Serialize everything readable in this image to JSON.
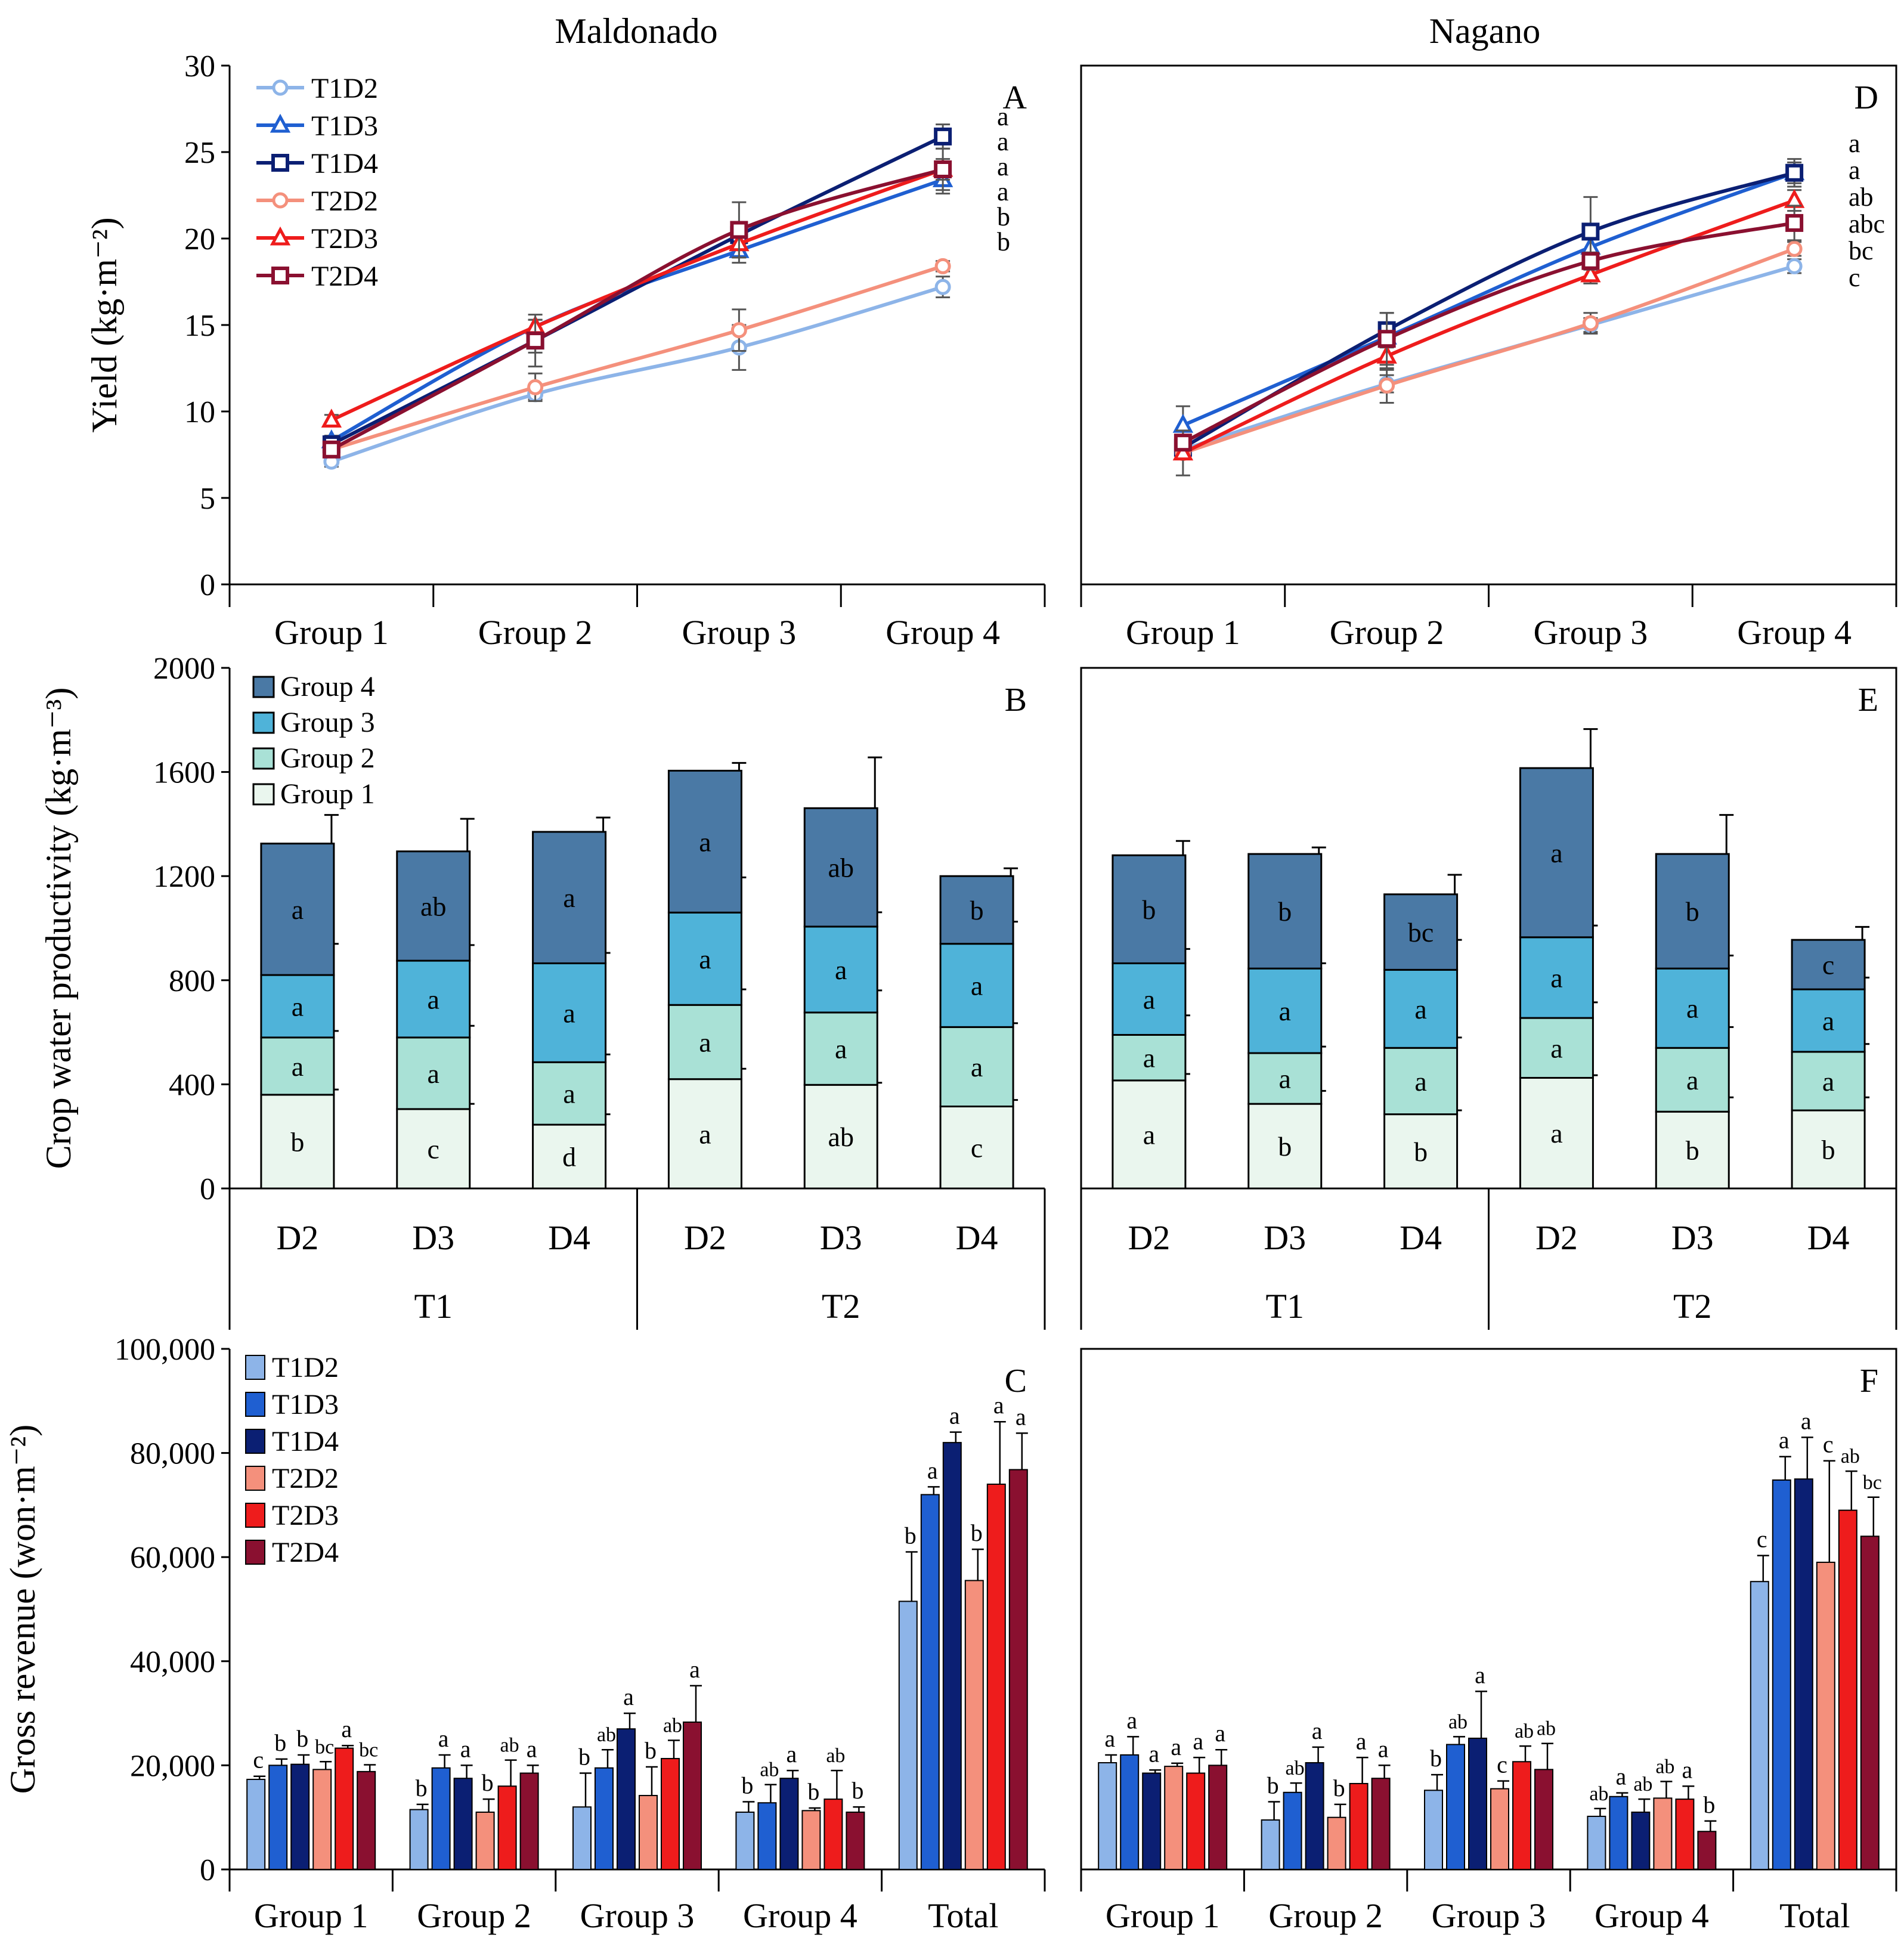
{
  "titles": {
    "left": "Maldonado",
    "right": "Nagano"
  },
  "colors": {
    "T1D2": "#8DB4E8",
    "T1D3": "#1F5FD1",
    "T1D4": "#0B1F73",
    "T2D2": "#F4907C",
    "T2D3": "#EE1C1C",
    "T2D4": "#8A1030",
    "Group 1": "#EAF6EE",
    "Group 2": "#A9E1D6",
    "Group 3": "#4FB3D9",
    "Group 4": "#4A79A5"
  },
  "chart_data": [
    {
      "id": "A",
      "panel": "A",
      "type": "line",
      "location": "Maldonado",
      "ylabel": "Yield (kg·m⁻²)",
      "ylim": [
        0,
        30
      ],
      "yticks": [
        "0",
        "5",
        "10",
        "15",
        "20",
        "25",
        "30"
      ],
      "categories": [
        "Group 1",
        "Group 2",
        "Group 3",
        "Group 4"
      ],
      "series": [
        {
          "name": "T1D2",
          "marker": "circle",
          "values": [
            7.1,
            11.0,
            13.7,
            17.2
          ],
          "errors": [
            0.3,
            0.3,
            1.3,
            0.6
          ]
        },
        {
          "name": "T1D3",
          "marker": "triangle",
          "values": [
            8.3,
            14.9,
            19.3,
            23.4
          ],
          "errors": [
            0.3,
            0.4,
            0.7,
            0.8
          ]
        },
        {
          "name": "T1D4",
          "marker": "square",
          "values": [
            8.1,
            14.1,
            20.2,
            25.9
          ],
          "errors": [
            0.4,
            0.7,
            0.5,
            0.7
          ]
        },
        {
          "name": "T2D2",
          "marker": "circle",
          "values": [
            7.8,
            11.4,
            14.7,
            18.4
          ],
          "errors": [
            0.3,
            0.8,
            1.2,
            0.3
          ]
        },
        {
          "name": "T2D3",
          "marker": "triangle",
          "values": [
            9.5,
            14.9,
            19.7,
            24.0
          ],
          "errors": [
            0.3,
            0.4,
            0.8,
            0.6
          ]
        },
        {
          "name": "T2D4",
          "marker": "square",
          "values": [
            7.8,
            14.1,
            20.5,
            24.0
          ],
          "errors": [
            0.4,
            1.5,
            1.6,
            1.2
          ]
        }
      ],
      "end_labels": [
        "a",
        "a",
        "a",
        "a",
        "b",
        "b"
      ]
    },
    {
      "id": "D",
      "panel": "D",
      "type": "line",
      "location": "Nagano",
      "ylabel": "",
      "ylim": [
        0,
        30
      ],
      "categories": [
        "Group 1",
        "Group 2",
        "Group 3",
        "Group 4"
      ],
      "series": [
        {
          "name": "T1D2",
          "marker": "circle",
          "values": [
            7.8,
            11.6,
            15.0,
            18.4
          ],
          "errors": [
            0.3,
            0.5,
            0.4,
            0.4
          ]
        },
        {
          "name": "T1D3",
          "marker": "triangle",
          "values": [
            9.2,
            14.3,
            19.5,
            23.8
          ],
          "errors": [
            1.1,
            0.5,
            0.5,
            0.6
          ]
        },
        {
          "name": "T1D4",
          "marker": "square",
          "values": [
            7.9,
            14.7,
            20.4,
            23.8
          ],
          "errors": [
            0.4,
            1.0,
            2.0,
            0.8
          ]
        },
        {
          "name": "T2D2",
          "marker": "circle",
          "values": [
            7.6,
            11.5,
            15.1,
            19.4
          ],
          "errors": [
            0.3,
            1.0,
            0.6,
            0.4
          ]
        },
        {
          "name": "T2D3",
          "marker": "triangle",
          "values": [
            7.6,
            13.2,
            17.9,
            22.2
          ],
          "errors": [
            1.3,
            0.8,
            0.5,
            0.6
          ]
        },
        {
          "name": "T2D4",
          "marker": "square",
          "values": [
            8.2,
            14.2,
            18.7,
            20.9
          ],
          "errors": [
            0.4,
            1.5,
            0.5,
            1.0
          ]
        }
      ],
      "end_labels": [
        "a",
        "a",
        "ab",
        "abc",
        "bc",
        "c"
      ]
    },
    {
      "id": "B",
      "panel": "B",
      "type": "bar",
      "stacked": true,
      "location": "Maldonado",
      "ylabel": "Crop water productivity (kg·m⁻³)",
      "ylim": [
        0,
        2000
      ],
      "yticks": [
        "0",
        "400",
        "800",
        "1200",
        "1600",
        "2000"
      ],
      "categories": [
        "D2",
        "D3",
        "D4",
        "D2",
        "D3",
        "D4"
      ],
      "groups": [
        {
          "label": "T1",
          "span": [
            0,
            2
          ]
        },
        {
          "label": "T2",
          "span": [
            3,
            5
          ]
        }
      ],
      "series": [
        {
          "name": "Group 1",
          "values": [
            360,
            305,
            245,
            420,
            398,
            315
          ],
          "errors": [
            20,
            20,
            40,
            40,
            8,
            25
          ],
          "labels": [
            "b",
            "c",
            "d",
            "a",
            "ab",
            "c"
          ]
        },
        {
          "name": "Group 2",
          "values": [
            220,
            275,
            240,
            285,
            278,
            305
          ],
          "errors": [
            25,
            45,
            30,
            60,
            85,
            15
          ],
          "labels": [
            "a",
            "a",
            "a",
            "a",
            "a",
            "a"
          ]
        },
        {
          "name": "Group 3",
          "values": [
            240,
            295,
            380,
            355,
            330,
            320
          ],
          "errors": [
            120,
            60,
            40,
            135,
            55,
            85
          ],
          "labels": [
            "a",
            "a",
            "a",
            "a",
            "a",
            "a"
          ]
        },
        {
          "name": "Group 4",
          "values": [
            505,
            420,
            505,
            545,
            455,
            260
          ],
          "errors": [
            110,
            125,
            55,
            30,
            195,
            30
          ],
          "labels": [
            "a",
            "ab",
            "a",
            "a",
            "ab",
            "b"
          ]
        }
      ]
    },
    {
      "id": "E",
      "panel": "E",
      "type": "bar",
      "stacked": true,
      "location": "Nagano",
      "ylabel": "",
      "ylim": [
        0,
        2000
      ],
      "categories": [
        "D2",
        "D3",
        "D4",
        "D2",
        "D3",
        "D4"
      ],
      "groups": [
        {
          "label": "T1",
          "span": [
            0,
            2
          ]
        },
        {
          "label": "T2",
          "span": [
            3,
            5
          ]
        }
      ],
      "series": [
        {
          "name": "Group 1",
          "values": [
            415,
            325,
            285,
            425,
            295,
            300
          ],
          "errors": [
            25,
            50,
            15,
            10,
            55,
            50
          ],
          "labels": [
            "a",
            "b",
            "b",
            "a",
            "b",
            "b"
          ]
        },
        {
          "name": "Group 2",
          "values": [
            175,
            195,
            255,
            230,
            245,
            225
          ],
          "errors": [
            75,
            25,
            40,
            60,
            80,
            30
          ],
          "labels": [
            "a",
            "a",
            "a",
            "a",
            "a",
            "a"
          ]
        },
        {
          "name": "Group 3",
          "values": [
            275,
            325,
            300,
            310,
            305,
            240
          ],
          "errors": [
            55,
            20,
            115,
            45,
            50,
            45
          ],
          "labels": [
            "a",
            "a",
            "a",
            "a",
            "a",
            "a"
          ]
        },
        {
          "name": "Group 4",
          "values": [
            415,
            440,
            290,
            650,
            440,
            190
          ],
          "errors": [
            55,
            25,
            75,
            150,
            150,
            50
          ],
          "labels": [
            "b",
            "b",
            "bc",
            "a",
            "b",
            "c"
          ]
        }
      ]
    },
    {
      "id": "C",
      "panel": "C",
      "type": "bar",
      "location": "Maldonado",
      "ylabel": "Gross revenue (won·m⁻²)",
      "ylim": [
        0,
        100000
      ],
      "yticks": [
        "0",
        "20,000",
        "40,000",
        "60,000",
        "80,000",
        "100,000"
      ],
      "categories": [
        "Group 1",
        "Group 2",
        "Group 3",
        "Group 4",
        "Total"
      ],
      "series": [
        {
          "name": "T1D2",
          "values": [
            17300,
            11500,
            12000,
            11000,
            51500
          ],
          "errors": [
            600,
            1000,
            6500,
            2000,
            9500
          ]
        },
        {
          "name": "T1D3",
          "values": [
            20000,
            19500,
            19500,
            12800,
            72000
          ],
          "errors": [
            1200,
            2500,
            3500,
            3500,
            1500
          ]
        },
        {
          "name": "T1D4",
          "values": [
            20200,
            17500,
            27000,
            17500,
            82000
          ],
          "errors": [
            1800,
            2500,
            3000,
            1500,
            2000
          ]
        },
        {
          "name": "T2D2",
          "values": [
            19200,
            11000,
            14200,
            11300,
            55500
          ],
          "errors": [
            1500,
            2500,
            5500,
            500,
            6000
          ]
        },
        {
          "name": "T2D3",
          "values": [
            23300,
            16000,
            21300,
            13500,
            74000
          ],
          "errors": [
            500,
            5000,
            3500,
            5500,
            12000
          ]
        },
        {
          "name": "T2D4",
          "values": [
            18800,
            18500,
            28300,
            11000,
            76800
          ],
          "errors": [
            1300,
            1500,
            7000,
            1000,
            7000
          ]
        }
      ],
      "labels": [
        [
          "c",
          "b",
          "b",
          "bc",
          "a",
          "bc"
        ],
        [
          "b",
          "a",
          "a",
          "b",
          "ab",
          "a"
        ],
        [
          "b",
          "ab",
          "a",
          "b",
          "ab",
          "a"
        ],
        [
          "b",
          "ab",
          "a",
          "b",
          "ab",
          "b"
        ],
        [
          "b",
          "a",
          "a",
          "b",
          "a",
          "a"
        ]
      ]
    },
    {
      "id": "F",
      "panel": "F",
      "type": "bar",
      "location": "Nagano",
      "ylabel": "",
      "ylim": [
        0,
        100000
      ],
      "categories": [
        "Group 1",
        "Group 2",
        "Group 3",
        "Group 4",
        "Total"
      ],
      "series": [
        {
          "name": "T1D2",
          "values": [
            20500,
            9500,
            15200,
            10200,
            55300
          ],
          "errors": [
            1500,
            3500,
            3000,
            1500,
            5000
          ]
        },
        {
          "name": "T1D3",
          "values": [
            22000,
            14800,
            24000,
            14000,
            74800
          ],
          "errors": [
            3500,
            1800,
            1500,
            700,
            4500
          ]
        },
        {
          "name": "T1D4",
          "values": [
            18500,
            20500,
            25200,
            11000,
            75000
          ],
          "errors": [
            600,
            3000,
            9000,
            2500,
            8000
          ]
        },
        {
          "name": "T2D2",
          "values": [
            19800,
            10000,
            15500,
            13700,
            59000
          ],
          "errors": [
            600,
            2500,
            1500,
            3200,
            19500
          ]
        },
        {
          "name": "T2D3",
          "values": [
            18500,
            16500,
            20700,
            13500,
            69000
          ],
          "errors": [
            3000,
            5000,
            3000,
            2500,
            7500
          ]
        },
        {
          "name": "T2D4",
          "values": [
            20000,
            17500,
            19200,
            7300,
            64000
          ],
          "errors": [
            3000,
            2500,
            5000,
            2000,
            7500
          ]
        }
      ],
      "labels": [
        [
          "a",
          "a",
          "a",
          "a",
          "a",
          "a"
        ],
        [
          "b",
          "ab",
          "a",
          "b",
          "a",
          "a"
        ],
        [
          "b",
          "ab",
          "a",
          "c",
          "ab",
          "ab"
        ],
        [
          "ab",
          "a",
          "ab",
          "ab",
          "a",
          "b"
        ],
        [
          "c",
          "a",
          "a",
          "c",
          "ab",
          "bc"
        ]
      ]
    }
  ]
}
